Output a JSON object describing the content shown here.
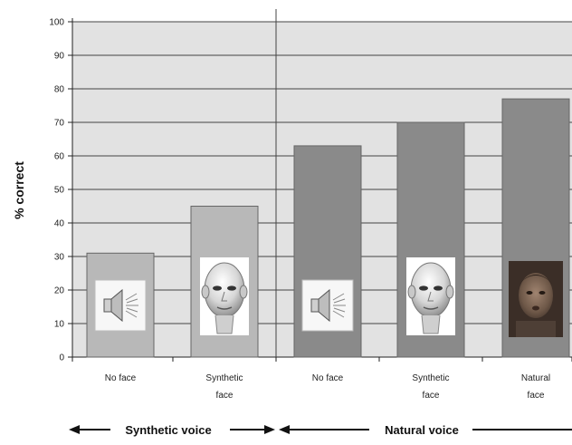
{
  "chart_data": {
    "type": "bar",
    "ylabel": "% correct",
    "ylim": [
      0,
      100
    ],
    "yticks": [
      0,
      10,
      20,
      30,
      40,
      50,
      60,
      70,
      80,
      90,
      100
    ],
    "grid": true,
    "categories": [
      {
        "line1": "No face",
        "line2": ""
      },
      {
        "line1": "Synthetic",
        "line2": "face"
      },
      {
        "line1": "No face",
        "line2": ""
      },
      {
        "line1": "Synthetic",
        "line2": "face"
      },
      {
        "line1": "Natural",
        "line2": "face"
      }
    ],
    "values": [
      31,
      45,
      63,
      70,
      77
    ],
    "icons": [
      "speaker-icon",
      "synthetic-face-icon",
      "speaker-icon",
      "synthetic-face-icon",
      "natural-face-photo"
    ],
    "groups": [
      {
        "label": "Synthetic voice",
        "bars": [
          0,
          1
        ]
      },
      {
        "label": "Natural voice",
        "bars": [
          2,
          3,
          4
        ]
      }
    ],
    "colors": {
      "plot_bg": "#e2e2e2",
      "grid": "#444444",
      "synthetic_bar": "#b8b8b8",
      "natural_bar": "#8a8a8a",
      "bar_edge": "#666666"
    }
  }
}
